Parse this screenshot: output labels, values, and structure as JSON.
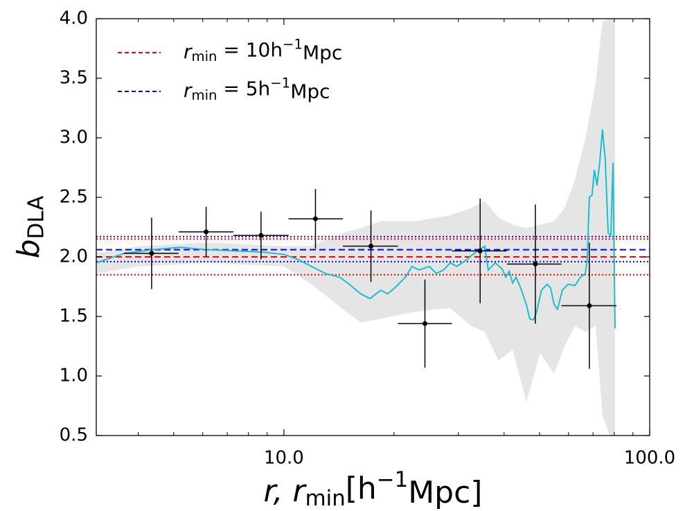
{
  "chart_data": {
    "type": "errorbar",
    "xlabel_parts": [
      "r, r",
      "min",
      "[h",
      "−1",
      "Mpc]"
    ],
    "ylabel_parts": [
      "b",
      "DLA"
    ],
    "log_x": true,
    "xlim": [
      3.07,
      100
    ],
    "ylim": [
      0.5,
      4.0
    ],
    "xticks": [
      {
        "value": 10,
        "label": "10.0"
      },
      {
        "value": 100,
        "label": "100.0"
      }
    ],
    "xminorticks": [
      4,
      5,
      6,
      7,
      8,
      9,
      20,
      30,
      40,
      50,
      60,
      70,
      80,
      90
    ],
    "yticks": [
      0.5,
      {
        "value": 1,
        "label": "1.0"
      },
      1.5,
      {
        "value": 2,
        "label": "2.0"
      },
      2.5,
      {
        "value": 3,
        "label": "3.0"
      },
      3.5,
      {
        "value": 4,
        "label": "4.0"
      }
    ],
    "legend_loc": "upper left",
    "hlines": [
      {
        "name_parts": [
          "r",
          "min",
          " = 10h",
          "−1",
          "Mpc"
        ],
        "color": "#ff0000",
        "value": 2.0,
        "band": [
          1.85,
          2.15
        ]
      },
      {
        "name_parts": [
          "r",
          "min",
          " = 5h",
          "−1",
          "Mpc"
        ],
        "color": "#0000ff",
        "value": 2.06,
        "band": [
          1.96,
          2.17
        ]
      }
    ],
    "points": {
      "color": "#000000",
      "x": [
        4.35,
        6.13,
        8.66,
        12.2,
        17.3,
        24.3,
        34.4,
        48.7,
        68.4
      ],
      "x_lo": [
        3.65,
        5.15,
        7.28,
        10.3,
        14.5,
        20.5,
        28.8,
        40.7,
        57.4
      ],
      "x_hi": [
        5.15,
        7.28,
        10.3,
        14.5,
        20.5,
        28.8,
        40.7,
        57.4,
        81.1
      ],
      "values": [
        2.03,
        2.21,
        2.18,
        2.32,
        2.09,
        1.44,
        2.05,
        1.94,
        1.59
      ],
      "yerr": [
        0.3,
        0.21,
        0.2,
        0.25,
        0.3,
        0.37,
        0.44,
        0.5,
        0.53
      ]
    },
    "curve": {
      "color": "#17becf",
      "x": [
        3.07,
        3.67,
        4.37,
        5.2,
        6.19,
        7.37,
        8.78,
        10.0,
        10.9,
        11.9,
        13.0,
        14.2,
        15.1,
        16.2,
        17.2,
        18.4,
        19.2,
        20.1,
        21.5,
        22.4,
        23.4,
        25.0,
        26.1,
        27.3,
        28.5,
        29.7,
        31.1,
        32.5,
        33.9,
        35.4,
        36.2,
        37.8,
        39.5,
        40.4,
        41.3,
        42.2,
        43.1,
        44.4,
        46.0,
        47.0,
        48.1,
        49.1,
        50.6,
        52.4,
        53.6,
        54.8,
        56.0,
        57.7,
        59.8,
        62.5,
        64.7,
        66.7,
        67.5,
        68.4,
        69.6,
        70.6,
        71.8,
        73.0,
        74.3,
        75.6,
        77.0,
        78.3,
        79.4,
        80.4
      ],
      "values": [
        1.95,
        2.03,
        2.06,
        2.08,
        2.06,
        2.05,
        2.04,
        2.02,
        1.98,
        1.92,
        1.86,
        1.83,
        1.77,
        1.69,
        1.65,
        1.72,
        1.69,
        1.74,
        1.83,
        1.92,
        1.89,
        1.92,
        1.86,
        1.89,
        1.95,
        1.92,
        1.96,
        2.01,
        2.05,
        2.09,
        1.89,
        1.95,
        1.9,
        1.83,
        1.88,
        1.78,
        1.83,
        1.74,
        1.6,
        1.48,
        1.47,
        1.54,
        1.72,
        1.77,
        1.74,
        1.6,
        1.56,
        1.72,
        1.77,
        1.76,
        1.83,
        1.86,
        1.98,
        2.5,
        2.52,
        2.73,
        2.6,
        2.79,
        3.07,
        2.82,
        2.2,
        2.18,
        2.79,
        1.4
      ]
    },
    "band": {
      "color": "#e5e5e5",
      "x": [
        3.07,
        4.0,
        6.19,
        10.0,
        11.9,
        14.8,
        16.2,
        18.4,
        22.9,
        28.5,
        32.5,
        35.4,
        38.6,
        42.2,
        46.0,
        50.2,
        54.8,
        58.5,
        62.5,
        66.7,
        71.2,
        74.3,
        77.7,
        80.4
      ],
      "upper": [
        2.03,
        2.09,
        2.12,
        2.09,
        2.09,
        2.21,
        2.24,
        2.3,
        2.3,
        2.35,
        2.41,
        2.47,
        2.33,
        2.27,
        2.24,
        2.27,
        2.3,
        2.41,
        2.65,
        2.99,
        3.46,
        3.98,
        4.0,
        4.0
      ],
      "lower": [
        1.86,
        1.92,
        1.95,
        1.92,
        1.77,
        1.54,
        1.45,
        1.48,
        1.54,
        1.57,
        1.42,
        1.37,
        1.13,
        1.22,
        0.78,
        1.19,
        1.02,
        1.25,
        1.42,
        1.37,
        1.42,
        0.67,
        0.5,
        0.5
      ]
    }
  }
}
